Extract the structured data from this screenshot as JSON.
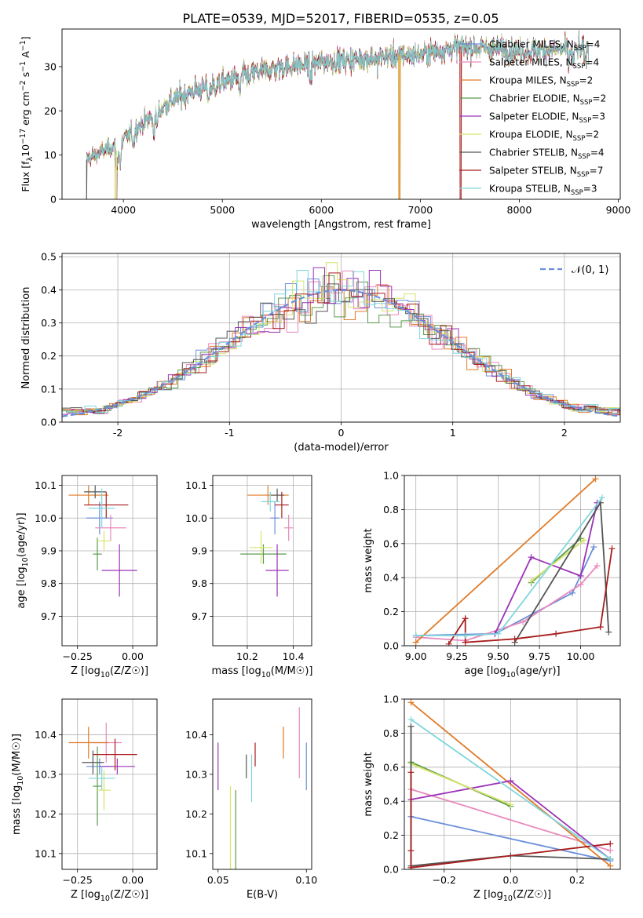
{
  "title": "PLATE=0539, MJD=52017, FIBERID=0535, z=0.05",
  "colors": [
    "#6a8fd9",
    "#e889bc",
    "#e07b28",
    "#5a9a4e",
    "#9b33b8",
    "#d6e36a",
    "#555555",
    "#a81c1c",
    "#7ed6dc"
  ],
  "chart_data": [
    {
      "id": "spectrum",
      "type": "line",
      "title": "PLATE=0539, MJD=52017, FIBERID=0535, z=0.05",
      "xlabel": "wavelength [Angstrom, rest frame]",
      "ylabel": "Flux [f",
      "ylabel_full": "Flux [fλ10⁻¹⁷ erg cm⁻² s⁻¹ A⁻¹]",
      "xlim": [
        3380,
        9020
      ],
      "ylim": [
        0,
        38.5
      ],
      "xticks": [
        4000,
        5000,
        6000,
        7000,
        8000,
        9000
      ],
      "yticks": [
        0,
        10,
        20,
        30
      ],
      "legend_placement": "right",
      "grid": false,
      "legend": [
        "Chabrier MILES, N_SSP=4",
        "Salpeter MILES, N_SSP=4",
        "Kroupa MILES, N_SSP=2",
        "Chabrier ELODIE, N_SSP=2",
        "Salpeter ELODIE, N_SSP=3",
        "Kroupa ELODIE, N_SSP=2",
        "Chabrier STELIB, N_SSP=4",
        "Salpeter STELIB, N_SSP=7",
        "Kroupa STELIB, N_SSP=3"
      ],
      "continuum": [
        [
          3630,
          9.0
        ],
        [
          3800,
          11.0
        ],
        [
          3950,
          12.5
        ],
        [
          4100,
          15.5
        ],
        [
          4300,
          19.0
        ],
        [
          4500,
          22.5
        ],
        [
          4700,
          24.5
        ],
        [
          4900,
          25.5
        ],
        [
          5200,
          28.0
        ],
        [
          5500,
          29.5
        ],
        [
          6000,
          31.0
        ],
        [
          6500,
          32.0
        ],
        [
          7000,
          32.8
        ],
        [
          7400,
          34.5
        ],
        [
          7800,
          34.0
        ],
        [
          8000,
          33.5
        ],
        [
          8300,
          33.8
        ],
        [
          8700,
          34.0
        ]
      ]
    },
    {
      "id": "residuals",
      "type": "histogram",
      "xlabel": "(data-model)/error",
      "ylabel": "Normed distribution",
      "xlim": [
        -2.5,
        2.5
      ],
      "ylim": [
        0,
        0.51
      ],
      "xticks": [
        -2,
        -1,
        0,
        1,
        2
      ],
      "yticks": [
        0.0,
        0.1,
        0.2,
        0.3,
        0.4,
        0.5
      ],
      "grid": true,
      "legend": [
        "𝒩(0, 1)"
      ],
      "legend_placement": "top-right",
      "bin_width": 0.1
    },
    {
      "id": "age_vs_Z",
      "type": "scatter",
      "xlabel": "Z [log",
      "xlabel_full": "Z [log₁₀(Z/Z☉)]",
      "ylabel": "age  [log",
      "ylabel_full": "age [log₁₀(age/yr)]",
      "xlim": [
        -0.32,
        0.11
      ],
      "ylim": [
        9.61,
        10.13
      ],
      "xticks": [
        -0.25,
        0.0
      ],
      "yticks": [
        9.7,
        9.8,
        9.9,
        10.0,
        10.1
      ],
      "grid": true,
      "points": [
        {
          "x": -0.15,
          "xerr": 0.06,
          "y": 10.0,
          "yerr": 0.05
        },
        {
          "x": -0.1,
          "xerr": 0.07,
          "y": 9.97,
          "yerr": 0.04
        },
        {
          "x": -0.2,
          "xerr": 0.09,
          "y": 10.07,
          "yerr": 0.03
        },
        {
          "x": -0.16,
          "xerr": 0.02,
          "y": 9.89,
          "yerr": 0.05
        },
        {
          "x": -0.06,
          "xerr": 0.08,
          "y": 9.84,
          "yerr": 0.08
        },
        {
          "x": -0.13,
          "xerr": 0.03,
          "y": 9.93,
          "yerr": 0.03
        },
        {
          "x": -0.17,
          "xerr": 0.05,
          "y": 10.08,
          "yerr": 0.02
        },
        {
          "x": -0.12,
          "xerr": 0.1,
          "y": 10.04,
          "yerr": 0.04
        },
        {
          "x": -0.14,
          "xerr": 0.06,
          "y": 10.03,
          "yerr": 0.06
        }
      ]
    },
    {
      "id": "age_vs_mass",
      "type": "scatter",
      "xlabel": "mass [log",
      "xlabel_full": "mass [log₁₀(M/M☉)]",
      "ylabel": "",
      "xlim": [
        10.05,
        10.48
      ],
      "ylim": [
        9.61,
        10.13
      ],
      "xticks": [
        10.2,
        10.4
      ],
      "yticks": [
        9.7,
        9.8,
        9.9,
        10.0,
        10.1
      ],
      "grid": true,
      "points": [
        {
          "x": 10.32,
          "xerr": 0.02,
          "y": 10.0,
          "yerr": 0.05
        },
        {
          "x": 10.38,
          "xerr": 0.02,
          "y": 9.97,
          "yerr": 0.04
        },
        {
          "x": 10.29,
          "xerr": 0.09,
          "y": 10.07,
          "yerr": 0.03
        },
        {
          "x": 10.27,
          "xerr": 0.1,
          "y": 9.89,
          "yerr": 0.03
        },
        {
          "x": 10.33,
          "xerr": 0.05,
          "y": 9.84,
          "yerr": 0.08
        },
        {
          "x": 10.26,
          "xerr": 0.05,
          "y": 9.91,
          "yerr": 0.05
        },
        {
          "x": 10.33,
          "xerr": 0.03,
          "y": 10.07,
          "yerr": 0.02
        },
        {
          "x": 10.35,
          "xerr": 0.03,
          "y": 10.04,
          "yerr": 0.04
        },
        {
          "x": 10.3,
          "xerr": 0.04,
          "y": 10.05,
          "yerr": 0.03
        }
      ]
    },
    {
      "id": "weight_vs_age",
      "type": "line",
      "xlabel": "age  [log",
      "xlabel_full": "age [log₁₀(age/yr)]",
      "ylabel": "mass weight",
      "xlim": [
        8.93,
        10.24
      ],
      "ylim": [
        0,
        1.0
      ],
      "xticks": [
        9.0,
        9.25,
        9.5,
        9.75,
        10.0
      ],
      "yticks": [
        0.0,
        0.2,
        0.4,
        0.6,
        0.8,
        1.0
      ],
      "grid": true,
      "series": [
        {
          "x": [
            9.0,
            9.48,
            9.95,
            10.08
          ],
          "y": [
            0.06,
            0.07,
            0.31,
            0.58
          ]
        },
        {
          "x": [
            9.0,
            9.3,
            9.65,
            10.0,
            10.1
          ],
          "y": [
            0.05,
            0.03,
            0.14,
            0.36,
            0.47
          ]
        },
        {
          "x": [
            9.0,
            10.09
          ],
          "y": [
            0.02,
            0.98
          ]
        },
        {
          "x": [
            9.7,
            10.0
          ],
          "y": [
            0.37,
            0.63
          ]
        },
        {
          "x": [
            9.48,
            9.7,
            10.0,
            10.1
          ],
          "y": [
            0.07,
            0.52,
            0.41,
            0.84
          ]
        },
        {
          "x": [
            9.7,
            10.02
          ],
          "y": [
            0.38,
            0.62
          ]
        },
        {
          "x": [
            9.6,
            10.12,
            10.17
          ],
          "y": [
            0.02,
            0.84,
            0.08
          ]
        },
        {
          "x": [
            9.2,
            9.3,
            9.3,
            9.6,
            9.85,
            10.12,
            10.19
          ],
          "y": [
            0.01,
            0.16,
            0.02,
            0.04,
            0.07,
            0.11,
            0.57
          ]
        },
        {
          "x": [
            9.0,
            9.3,
            9.5,
            10.13
          ],
          "y": [
            0.06,
            0.06,
            0.07,
            0.87
          ]
        }
      ]
    },
    {
      "id": "mass_vs_Z",
      "type": "scatter",
      "xlabel": "Z [log",
      "xlabel_full": "Z [log₁₀(Z/Z☉)]",
      "ylabel": "mass [log",
      "ylabel_full": "mass [log₁₀(M/M☉)]",
      "xlim": [
        -0.32,
        0.11
      ],
      "ylim": [
        10.06,
        10.49
      ],
      "xticks": [
        -0.25,
        0.0
      ],
      "yticks": [
        10.1,
        10.2,
        10.3,
        10.4
      ],
      "grid": true,
      "points": [
        {
          "x": -0.15,
          "xerr": 0.06,
          "y": 10.32,
          "yerr": 0.02
        },
        {
          "x": -0.12,
          "xerr": 0.07,
          "y": 10.38,
          "yerr": 0.05
        },
        {
          "x": -0.2,
          "xerr": 0.09,
          "y": 10.38,
          "yerr": 0.04
        },
        {
          "x": -0.16,
          "xerr": 0.02,
          "y": 10.27,
          "yerr": 0.1
        },
        {
          "x": -0.07,
          "xerr": 0.08,
          "y": 10.32,
          "yerr": 0.02
        },
        {
          "x": -0.13,
          "xerr": 0.03,
          "y": 10.26,
          "yerr": 0.05
        },
        {
          "x": -0.18,
          "xerr": 0.05,
          "y": 10.33,
          "yerr": 0.03
        },
        {
          "x": -0.08,
          "xerr": 0.1,
          "y": 10.35,
          "yerr": 0.04
        },
        {
          "x": -0.14,
          "xerr": 0.06,
          "y": 10.29,
          "yerr": 0.03
        }
      ]
    },
    {
      "id": "mass_vs_EBV",
      "type": "scatter",
      "xlabel": "E(B-V)",
      "ylabel": "",
      "xlim": [
        0.047,
        0.103
      ],
      "ylim": [
        10.06,
        10.49
      ],
      "xticks": [
        0.05,
        0.1
      ],
      "yticks": [
        10.1,
        10.2,
        10.3,
        10.4
      ],
      "grid": false,
      "points": [
        {
          "x": 0.1,
          "y": 10.32,
          "yerr": 0.06
        },
        {
          "x": 0.096,
          "y": 10.38,
          "yerr": 0.09
        },
        {
          "x": 0.087,
          "y": 10.38,
          "yerr": 0.04
        },
        {
          "x": 0.06,
          "y": 10.16,
          "yerr": 0.1
        },
        {
          "x": 0.05,
          "y": 10.32,
          "yerr": 0.06
        },
        {
          "x": 0.057,
          "y": 10.16,
          "yerr": 0.11
        },
        {
          "x": 0.066,
          "y": 10.32,
          "yerr": 0.03
        },
        {
          "x": 0.071,
          "y": 10.35,
          "yerr": 0.03
        },
        {
          "x": 0.069,
          "y": 10.29,
          "yerr": 0.06
        }
      ]
    },
    {
      "id": "weight_vs_Z",
      "type": "line",
      "xlabel": "Z [log",
      "xlabel_full": "Z [log₁₀(Z/Z☉)]",
      "ylabel": "mass weight",
      "xlim": [
        -0.32,
        0.33
      ],
      "ylim": [
        0,
        1.0
      ],
      "xticks": [
        -0.2,
        0.0,
        0.2
      ],
      "yticks": [
        0.0,
        0.2,
        0.4,
        0.6,
        0.8,
        1.0
      ],
      "grid": true,
      "series": [
        {
          "x": [
            -0.3,
            0.3
          ],
          "y": [
            0.31,
            0.05
          ]
        },
        {
          "x": [
            -0.3,
            0.3
          ],
          "y": [
            0.47,
            0.11
          ]
        },
        {
          "x": [
            -0.3,
            0.3
          ],
          "y": [
            0.98,
            0.02
          ]
        },
        {
          "x": [
            -0.3,
            0.0
          ],
          "y": [
            0.63,
            0.37
          ]
        },
        {
          "x": [
            -0.3,
            0.0,
            0.3
          ],
          "y": [
            0.41,
            0.52,
            0.06
          ]
        },
        {
          "x": [
            -0.3,
            0.0
          ],
          "y": [
            0.62,
            0.38
          ]
        },
        {
          "x": [
            -0.3,
            -0.3,
            0.0,
            0.3
          ],
          "y": [
            0.84,
            0.02,
            0.08,
            0.06
          ]
        },
        {
          "x": [
            -0.3,
            -0.3,
            -0.3,
            0.3
          ],
          "y": [
            0.57,
            0.11,
            0.01,
            0.15
          ]
        },
        {
          "x": [
            -0.3,
            0.3
          ],
          "y": [
            0.88,
            0.06
          ]
        }
      ]
    }
  ]
}
